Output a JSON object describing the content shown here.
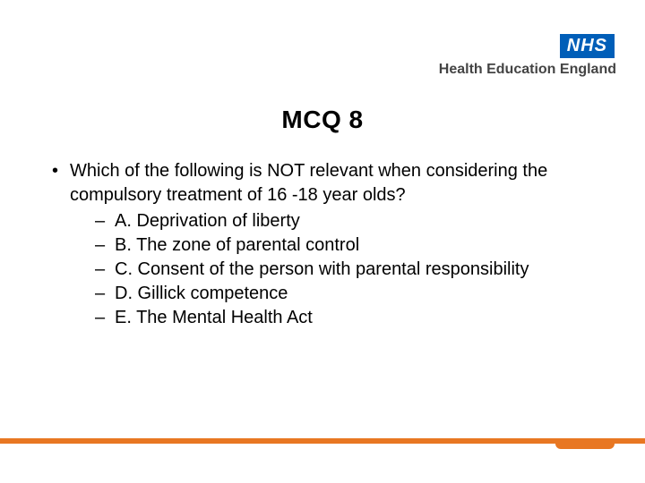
{
  "logo": {
    "nhs": "NHS",
    "hee": "Health Education England"
  },
  "title": "MCQ 8",
  "question": "Which of the following is NOT relevant when considering the compulsory treatment of 16 -18 year olds?",
  "options": [
    "A. Deprivation of liberty",
    "B. The zone of parental control",
    "C. Consent of the person with parental responsibility",
    "D. Gillick competence",
    "E. The Mental Health Act"
  ],
  "colors": {
    "nhs_blue": "#005eb8",
    "accent_orange": "#e87722",
    "text": "#000000",
    "hee_text": "#444444",
    "background": "#ffffff"
  },
  "typography": {
    "title_fontsize": 28,
    "body_fontsize": 20,
    "logo_fontsize": 20,
    "hee_fontsize": 16
  }
}
